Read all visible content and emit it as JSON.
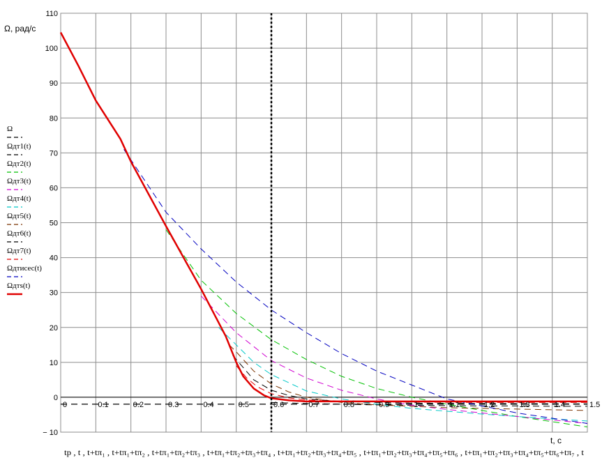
{
  "chart_data": {
    "type": "line",
    "ylabel": "Ω, рад/с",
    "xlabel": "t, c",
    "x_expression": "tp , t , t+tπ₁ , t+tπ₁+tπ₂ , t+tπ₁+tπ₂+tπ₃ , t+tπ₁+tπ₂+tπ₃+tπ₄ , t+tπ₁+tπ₂+tπ₃+tπ₄+tπ₅ , t+tπ₁+tπ₂+tπ₃+tπ₄+tπ₅+tπ₆ , t+tπ₁+tπ₂+tπ₃+tπ₄+tπ₅+tπ₆+tπ₇ , t",
    "xlim": [
      0,
      1.5
    ],
    "ylim": [
      -10,
      110
    ],
    "x_ticks": [
      0,
      0.1,
      0.2,
      0.3,
      0.4,
      0.5,
      0.6,
      0.7,
      0.8,
      0.9,
      1,
      1.1,
      1.2,
      1.3,
      1.4,
      1.5
    ],
    "y_ticks": [
      -10,
      0,
      10,
      20,
      30,
      40,
      50,
      60,
      70,
      80,
      90,
      100,
      110
    ],
    "y_tick_labels": [
      "− 10",
      "0",
      "10",
      "20",
      "30",
      "40",
      "50",
      "60",
      "70",
      "80",
      "90",
      "100",
      "110"
    ],
    "grid": true,
    "vertical_marker_x": 0.6,
    "legend_position": "left",
    "series": [
      {
        "name": "Ω",
        "color": "#000000",
        "style": "dashed",
        "width": 1.2,
        "x": [
          0,
          1.5
        ],
        "y": [
          -2,
          -2
        ]
      },
      {
        "name": "Ωдт1(t)",
        "color": "#000000",
        "style": "dashed",
        "width": 1,
        "x": [
          0.6,
          0.7,
          0.8,
          0.9,
          1.0,
          1.1,
          1.2,
          1.3,
          1.4,
          1.5
        ],
        "y": [
          -1.5,
          -1.8,
          -2.0,
          -2.2,
          -2.3,
          -2.4,
          -2.5,
          -2.5,
          -2.6,
          -2.6
        ]
      },
      {
        "name": "Ωдт2(t)",
        "color": "#00c000",
        "style": "dashed",
        "width": 1,
        "x": [
          0.3,
          0.4,
          0.5,
          0.6,
          0.7,
          0.8,
          0.9,
          1.0,
          1.1,
          1.2,
          1.3,
          1.4,
          1.5
        ],
        "y": [
          48,
          33.5,
          24,
          16.5,
          10.8,
          6,
          2.5,
          0,
          -2,
          -3.8,
          -5.5,
          -7,
          -8.5
        ]
      },
      {
        "name": "Ωдт3(t)",
        "color": "#d000d0",
        "style": "dashed",
        "width": 1,
        "x": [
          0.4,
          0.5,
          0.6,
          0.7,
          0.8,
          0.9,
          1.0,
          1.1,
          1.2,
          1.3,
          1.4,
          1.5
        ],
        "y": [
          29,
          18.5,
          10.5,
          5.5,
          2,
          -0.5,
          -2.3,
          -3.5,
          -4.5,
          -5.5,
          -6.5,
          -7.5
        ]
      },
      {
        "name": "Ωдт4(t)",
        "color": "#00c8c8",
        "style": "dashed",
        "width": 1,
        "x": [
          0.45,
          0.5,
          0.55,
          0.6,
          0.7,
          0.8,
          0.9,
          1.0,
          1.1,
          1.2,
          1.3,
          1.4,
          1.5
        ],
        "y": [
          20,
          15,
          10,
          6.5,
          1.8,
          -0.5,
          -2,
          -3.2,
          -4,
          -4.8,
          -5.5,
          -6.2,
          -6.8
        ]
      },
      {
        "name": "Ωдт5(t)",
        "color": "#7a3300",
        "style": "dashed",
        "width": 1,
        "x": [
          0.48,
          0.5,
          0.55,
          0.6,
          0.65,
          0.7,
          0.8,
          0.9,
          1.0,
          1.1,
          1.2,
          1.3,
          1.4,
          1.5
        ],
        "y": [
          15,
          13,
          7.5,
          3.8,
          1.5,
          0,
          -1.5,
          -2.2,
          -2.6,
          -3,
          -3.2,
          -3.4,
          -3.6,
          -3.8
        ]
      },
      {
        "name": "Ωдт6(t)",
        "color": "#000000",
        "style": "dashed",
        "width": 1,
        "x": [
          0.49,
          0.52,
          0.55,
          0.6,
          0.65,
          0.7,
          0.8,
          0.9,
          1.0,
          1.2,
          1.5
        ],
        "y": [
          12,
          8.5,
          5,
          2,
          0.5,
          -0.5,
          -1.2,
          -1.5,
          -1.7,
          -1.8,
          -1.9
        ]
      },
      {
        "name": "Ωдт7(t)",
        "color": "#e00000",
        "style": "dashed",
        "width": 1,
        "x": [
          0.5,
          0.53,
          0.56,
          0.6,
          0.65,
          0.7,
          0.8,
          1.0,
          1.2,
          1.5
        ],
        "y": [
          9,
          5.5,
          3,
          1,
          -0.2,
          -0.8,
          -1.2,
          -1.4,
          -1.5,
          -1.5
        ]
      },
      {
        "name": "Ωдтисес(t)",
        "color": "#0000c0",
        "style": "dashed",
        "width": 1,
        "x": [
          0.18,
          0.3,
          0.4,
          0.5,
          0.6,
          0.7,
          0.8,
          0.9,
          1.0,
          1.1,
          1.2,
          1.3,
          1.4,
          1.5
        ],
        "y": [
          71,
          53,
          42.5,
          33,
          25,
          18.5,
          12.5,
          7.5,
          3.5,
          -0.5,
          -2.5,
          -4.5,
          -6,
          -7.5
        ]
      },
      {
        "name": "Ωдтs(t)",
        "color": "#e00000",
        "style": "solid",
        "width": 2.5,
        "x": [
          0,
          0.05,
          0.1,
          0.17,
          0.2,
          0.3,
          0.4,
          0.47,
          0.5,
          0.52,
          0.55,
          0.58,
          0.6,
          0.65,
          0.7,
          0.8,
          0.9,
          1.0,
          1.1,
          1.2,
          1.3,
          1.4,
          1.5
        ],
        "y": [
          104.5,
          95,
          85,
          74,
          67.5,
          49,
          31,
          17.5,
          10,
          6,
          2.5,
          0.5,
          -0.3,
          -0.9,
          -1.2,
          -1.2,
          -1.2,
          -1.2,
          -1.2,
          -1.2,
          -1.2,
          -1.2,
          -1.2
        ]
      }
    ]
  }
}
